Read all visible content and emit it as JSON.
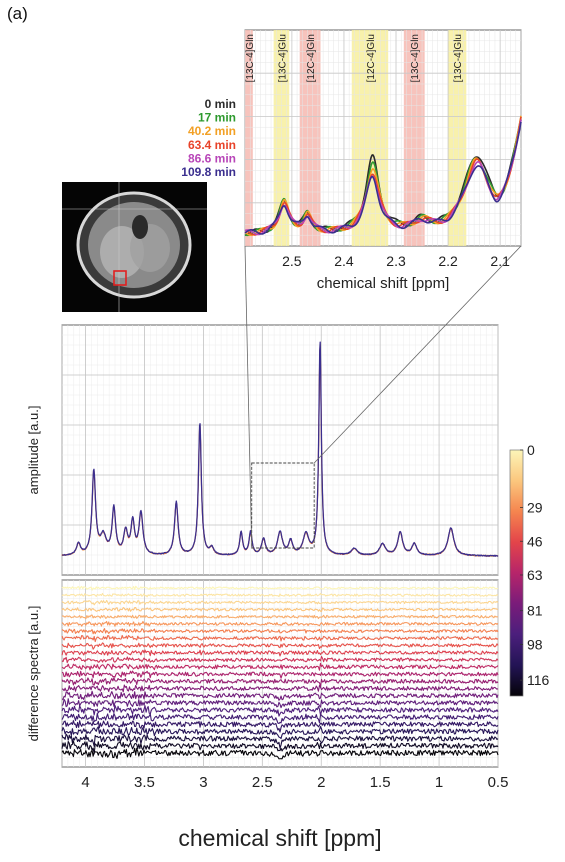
{
  "panel_label": "(a)",
  "mri_inset": {
    "roi_color": "#e02020"
  },
  "chart_data": [
    {
      "id": "inset",
      "type": "line",
      "xlabel": "chemical shift [ppm]",
      "ylabel": "",
      "xlim": [
        2.59,
        2.06
      ],
      "x_reversed": true,
      "x_ticks": [
        "2.5",
        "2.4",
        "2.3",
        "2.2",
        "2.1"
      ],
      "x_tick_values": [
        2.5,
        2.4,
        2.3,
        2.2,
        2.1
      ],
      "grid": true,
      "legend": {
        "placement": "top-left-outside",
        "entries": [
          {
            "label": "0 min",
            "color": "#2b2b2b"
          },
          {
            "label": "17 min",
            "color": "#2e9a2e"
          },
          {
            "label": "40.2 min",
            "color": "#f2a024"
          },
          {
            "label": "63.4 min",
            "color": "#e8432a"
          },
          {
            "label": "86.6 min",
            "color": "#b845b8"
          },
          {
            "label": "109.8 min",
            "color": "#3b2f8f"
          }
        ]
      },
      "bands": [
        {
          "label": "[13C-4]Gln",
          "from": 2.59,
          "to": 2.575,
          "color": "#f6b8b0"
        },
        {
          "label": "[13C-4]Glu",
          "from": 2.535,
          "to": 2.505,
          "color": "#f7ef9e"
        },
        {
          "label": "[12C-4]Gln",
          "from": 2.485,
          "to": 2.445,
          "color": "#f6b8b0"
        },
        {
          "label": "[12C-4]Glu",
          "from": 2.385,
          "to": 2.315,
          "color": "#f7ef9e"
        },
        {
          "label": "[13C-4]Gln",
          "from": 2.285,
          "to": 2.245,
          "color": "#f6b8b0"
        },
        {
          "label": "[13C-4]Glu",
          "from": 2.2,
          "to": 2.165,
          "color": "#f7ef9e"
        }
      ],
      "series_peak_scale": [
        1.25,
        1.15,
        1.08,
        1.02,
        0.97,
        0.92
      ]
    },
    {
      "id": "main",
      "type": "line",
      "xlabel": "",
      "ylabel": "amplitude [a.u.]",
      "xlim": [
        4.2,
        0.5
      ],
      "x_reversed": true,
      "x_ticks": [
        "4",
        "3.5",
        "3",
        "2.5",
        "2",
        "1.5",
        "1",
        "0.5"
      ],
      "x_tick_values": [
        4,
        3.5,
        3,
        2.5,
        2,
        1.5,
        1,
        0.5
      ],
      "grid": true,
      "zoom_box": {
        "xlim": [
          2.59,
          2.06
        ]
      },
      "baseline": 0.03,
      "peaks": [
        {
          "ppm": 4.06,
          "amp": 0.05,
          "w": 0.02
        },
        {
          "ppm": 3.93,
          "amp": 0.36,
          "w": 0.018
        },
        {
          "ppm": 3.85,
          "amp": 0.08,
          "w": 0.03
        },
        {
          "ppm": 3.76,
          "amp": 0.2,
          "w": 0.018
        },
        {
          "ppm": 3.66,
          "amp": 0.1,
          "w": 0.02
        },
        {
          "ppm": 3.6,
          "amp": 0.14,
          "w": 0.018
        },
        {
          "ppm": 3.53,
          "amp": 0.18,
          "w": 0.02
        },
        {
          "ppm": 3.23,
          "amp": 0.23,
          "w": 0.018
        },
        {
          "ppm": 3.03,
          "amp": 0.57,
          "w": 0.015
        },
        {
          "ppm": 2.93,
          "amp": 0.03,
          "w": 0.02
        },
        {
          "ppm": 2.68,
          "amp": 0.1,
          "w": 0.015
        },
        {
          "ppm": 2.6,
          "amp": 0.1,
          "w": 0.015
        },
        {
          "ppm": 2.49,
          "amp": 0.07,
          "w": 0.02
        },
        {
          "ppm": 2.35,
          "amp": 0.1,
          "w": 0.025
        },
        {
          "ppm": 2.26,
          "amp": 0.06,
          "w": 0.02
        },
        {
          "ppm": 2.13,
          "amp": 0.09,
          "w": 0.03
        },
        {
          "ppm": 2.01,
          "amp": 0.92,
          "w": 0.013
        },
        {
          "ppm": 1.72,
          "amp": 0.03,
          "w": 0.03
        },
        {
          "ppm": 1.48,
          "amp": 0.05,
          "w": 0.03
        },
        {
          "ppm": 1.33,
          "amp": 0.1,
          "w": 0.025
        },
        {
          "ppm": 1.21,
          "amp": 0.05,
          "w": 0.025
        },
        {
          "ppm": 0.9,
          "amp": 0.12,
          "w": 0.03
        }
      ],
      "series_colors": [
        "#e8432a",
        "#f2a024",
        "#3b2f8f"
      ]
    },
    {
      "id": "difference",
      "type": "line",
      "xlabel": "chemical shift [ppm]",
      "ylabel": "difference spectra [a.u.]",
      "xlim": [
        4.2,
        0.5
      ],
      "x_reversed": true,
      "x_ticks": [
        "4",
        "3.5",
        "3",
        "2.5",
        "2",
        "1.5",
        "1",
        "0.5"
      ],
      "x_tick_values": [
        4,
        3.5,
        3,
        2.5,
        2,
        1.5,
        1,
        0.5
      ],
      "grid": true,
      "n_traces": 24,
      "time_range_min": [
        0,
        116
      ]
    },
    {
      "id": "colorbar",
      "type": "heatmap",
      "ticks": [
        "0",
        "29",
        "46",
        "63",
        "81",
        "98",
        "116"
      ],
      "tick_values": [
        0,
        29,
        46,
        63,
        81,
        98,
        116
      ],
      "range": [
        0,
        124
      ],
      "colormap": [
        "#fcf5b8",
        "#fbc77e",
        "#f5854f",
        "#e3444a",
        "#b6256a",
        "#7a1c7a",
        "#4b1f7c",
        "#231455",
        "#050308"
      ]
    }
  ]
}
